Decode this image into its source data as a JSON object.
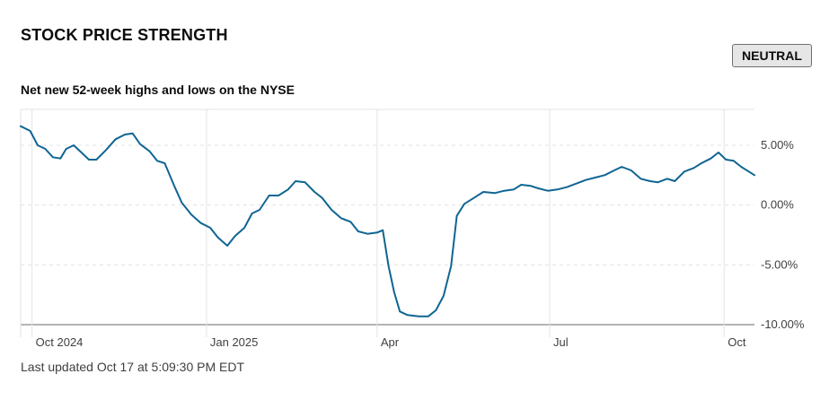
{
  "header": {
    "title": "STOCK PRICE STRENGTH",
    "status_badge": "NEUTRAL",
    "subtitle": "Net new 52-week highs and lows on the NYSE"
  },
  "footer": {
    "last_updated": "Last updated Oct 17 at 5:09:30 PM EDT"
  },
  "colors": {
    "line": "#0f6593",
    "grid": "#e3e3e3",
    "axis": "#9a9a9a"
  },
  "chart_data": {
    "type": "line",
    "title": "Net new 52-week highs and lows on the NYSE",
    "xlabel": "",
    "ylabel": "",
    "grid": true,
    "x_ticks": [
      {
        "label": "Oct 2024",
        "date": "2024-10-01"
      },
      {
        "label": "Jan 2025",
        "date": "2025-01-01"
      },
      {
        "label": "Apr",
        "date": "2025-04-01"
      },
      {
        "label": "Jul",
        "date": "2025-07-01"
      },
      {
        "label": "Oct",
        "date": "2025-10-01"
      }
    ],
    "y_ticks": [
      {
        "label": "5.00%",
        "value": 5
      },
      {
        "label": "0.00%",
        "value": 0
      },
      {
        "label": "-5.00%",
        "value": -5
      },
      {
        "label": "-10.00%",
        "value": -10
      }
    ],
    "xlim": [
      "2024-09-25",
      "2025-10-17"
    ],
    "ylim": [
      -10,
      8
    ],
    "series": [
      {
        "values": [
          [
            "2024-09-25",
            6.6
          ],
          [
            "2024-09-30",
            6.2
          ],
          [
            "2024-10-04",
            5.0
          ],
          [
            "2024-10-08",
            4.7
          ],
          [
            "2024-10-12",
            4.0
          ],
          [
            "2024-10-16",
            3.9
          ],
          [
            "2024-10-19",
            4.7
          ],
          [
            "2024-10-23",
            5.0
          ],
          [
            "2024-10-27",
            4.4
          ],
          [
            "2024-10-31",
            3.8
          ],
          [
            "2024-11-04",
            3.8
          ],
          [
            "2024-11-09",
            4.6
          ],
          [
            "2024-11-14",
            5.5
          ],
          [
            "2024-11-19",
            5.9
          ],
          [
            "2024-11-23",
            6.0
          ],
          [
            "2024-11-27",
            5.1
          ],
          [
            "2024-12-02",
            4.5
          ],
          [
            "2024-12-06",
            3.7
          ],
          [
            "2024-12-10",
            3.5
          ],
          [
            "2024-12-15",
            1.6
          ],
          [
            "2024-12-19",
            0.2
          ],
          [
            "2024-12-24",
            -0.8
          ],
          [
            "2024-12-29",
            -1.5
          ],
          [
            "2025-01-03",
            -1.9
          ],
          [
            "2025-01-07",
            -2.7
          ],
          [
            "2025-01-12",
            -3.4
          ],
          [
            "2025-01-16",
            -2.6
          ],
          [
            "2025-01-21",
            -1.9
          ],
          [
            "2025-01-25",
            -0.7
          ],
          [
            "2025-01-29",
            -0.4
          ],
          [
            "2025-02-03",
            0.8
          ],
          [
            "2025-02-08",
            0.8
          ],
          [
            "2025-02-13",
            1.3
          ],
          [
            "2025-02-17",
            2.0
          ],
          [
            "2025-02-22",
            1.9
          ],
          [
            "2025-02-27",
            1.1
          ],
          [
            "2025-03-03",
            0.6
          ],
          [
            "2025-03-08",
            -0.4
          ],
          [
            "2025-03-13",
            -1.1
          ],
          [
            "2025-03-18",
            -1.4
          ],
          [
            "2025-03-22",
            -2.2
          ],
          [
            "2025-03-27",
            -2.4
          ],
          [
            "2025-04-01",
            -2.3
          ],
          [
            "2025-04-04",
            -2.1
          ],
          [
            "2025-04-07",
            -5.1
          ],
          [
            "2025-04-10",
            -7.3
          ],
          [
            "2025-04-13",
            -8.9
          ],
          [
            "2025-04-17",
            -9.2
          ],
          [
            "2025-04-23",
            -9.3
          ],
          [
            "2025-04-28",
            -9.3
          ],
          [
            "2025-05-02",
            -8.8
          ],
          [
            "2025-05-06",
            -7.6
          ],
          [
            "2025-05-10",
            -5.1
          ],
          [
            "2025-05-13",
            -0.9
          ],
          [
            "2025-05-17",
            0.1
          ],
          [
            "2025-05-22",
            0.6
          ],
          [
            "2025-05-27",
            1.1
          ],
          [
            "2025-06-02",
            1.0
          ],
          [
            "2025-06-07",
            1.2
          ],
          [
            "2025-06-12",
            1.3
          ],
          [
            "2025-06-16",
            1.7
          ],
          [
            "2025-06-21",
            1.6
          ],
          [
            "2025-06-25",
            1.4
          ],
          [
            "2025-06-30",
            1.2
          ],
          [
            "2025-07-05",
            1.3
          ],
          [
            "2025-07-10",
            1.5
          ],
          [
            "2025-07-15",
            1.8
          ],
          [
            "2025-07-20",
            2.1
          ],
          [
            "2025-07-25",
            2.3
          ],
          [
            "2025-07-30",
            2.5
          ],
          [
            "2025-08-04",
            2.9
          ],
          [
            "2025-08-08",
            3.2
          ],
          [
            "2025-08-13",
            2.9
          ],
          [
            "2025-08-18",
            2.2
          ],
          [
            "2025-08-23",
            2.0
          ],
          [
            "2025-08-27",
            1.9
          ],
          [
            "2025-09-01",
            2.2
          ],
          [
            "2025-09-05",
            2.0
          ],
          [
            "2025-09-10",
            2.8
          ],
          [
            "2025-09-15",
            3.1
          ],
          [
            "2025-09-19",
            3.5
          ],
          [
            "2025-09-24",
            3.9
          ],
          [
            "2025-09-28",
            4.4
          ],
          [
            "2025-10-02",
            3.8
          ],
          [
            "2025-10-06",
            3.7
          ],
          [
            "2025-10-10",
            3.2
          ],
          [
            "2025-10-14",
            2.8
          ],
          [
            "2025-10-17",
            2.5
          ]
        ]
      }
    ]
  }
}
